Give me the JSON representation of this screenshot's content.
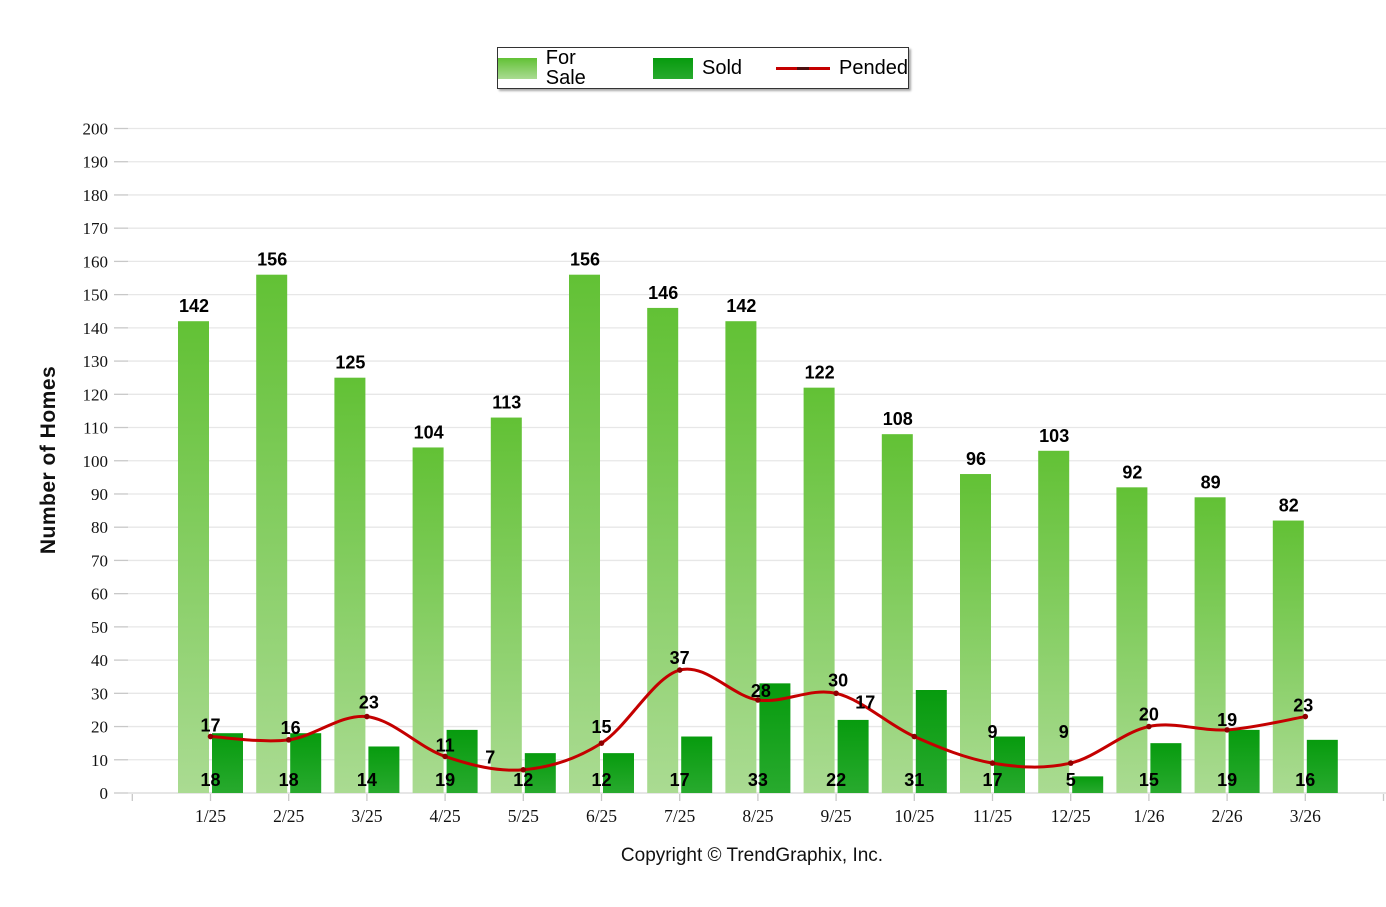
{
  "copyright": "Copyright © TrendGraphix, Inc.",
  "chart_data": {
    "type": "bar",
    "title": "",
    "xlabel": "",
    "ylabel": "Number of Homes",
    "ylim": [
      0,
      200
    ],
    "ytick_step": 10,
    "grid": true,
    "legend_position": "top-center",
    "categories": [
      "1/25",
      "2/25",
      "3/25",
      "4/25",
      "5/25",
      "6/25",
      "7/25",
      "8/25",
      "9/25",
      "10/25",
      "11/25",
      "12/25",
      "1/26",
      "2/26",
      "3/26"
    ],
    "series": [
      {
        "name": "For Sale",
        "type": "bar",
        "color": "#62c135",
        "color_bottom": "#aadb92",
        "values": [
          142,
          156,
          125,
          104,
          113,
          156,
          146,
          142,
          122,
          108,
          96,
          103,
          92,
          89,
          82
        ]
      },
      {
        "name": "Sold",
        "type": "bar",
        "color": "#079b0e",
        "color_bottom": "#28aa2e",
        "values": [
          18,
          18,
          14,
          19,
          12,
          12,
          17,
          33,
          22,
          31,
          17,
          5,
          15,
          19,
          16
        ]
      },
      {
        "name": "Pended",
        "type": "line",
        "color": "#c40000",
        "marker_color": "#8e0000",
        "values": [
          17,
          16,
          23,
          11,
          7,
          15,
          37,
          28,
          30,
          17,
          9,
          9,
          20,
          19,
          23
        ]
      }
    ]
  }
}
